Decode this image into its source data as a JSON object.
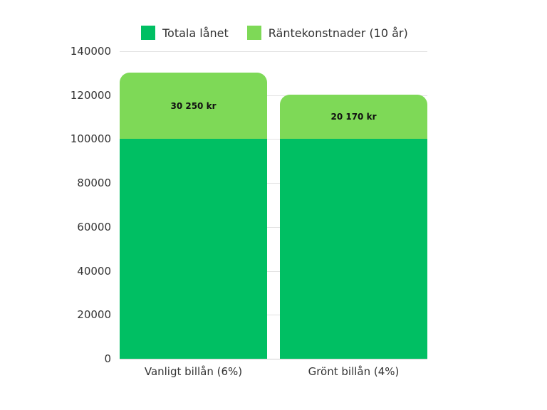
{
  "chart_data": {
    "type": "bar",
    "stacked": true,
    "title": "",
    "xlabel": "",
    "ylabel": "",
    "categories": [
      "Vanligt billån (6%)",
      "Grönt billån (4%)"
    ],
    "series": [
      {
        "name": "Totala lånet",
        "color": "#00bf63",
        "values": [
          100000,
          100000
        ]
      },
      {
        "name": "Räntekonstnader (10 år)",
        "color": "#7ed957",
        "values": [
          30250,
          20170
        ]
      }
    ],
    "data_labels": [
      "30 250 kr",
      "20 170 kr"
    ],
    "ylim": [
      0,
      140000
    ],
    "yticks": [
      "0",
      "20000",
      "40000",
      "60000",
      "80000",
      "100000",
      "120000",
      "140000"
    ],
    "grid": true,
    "legend_position": "top"
  },
  "legend": {
    "items": [
      {
        "label": "Totala lånet",
        "color": "#00bf63"
      },
      {
        "label": "Räntekonstnader (10 år)",
        "color": "#7ed957"
      }
    ]
  }
}
